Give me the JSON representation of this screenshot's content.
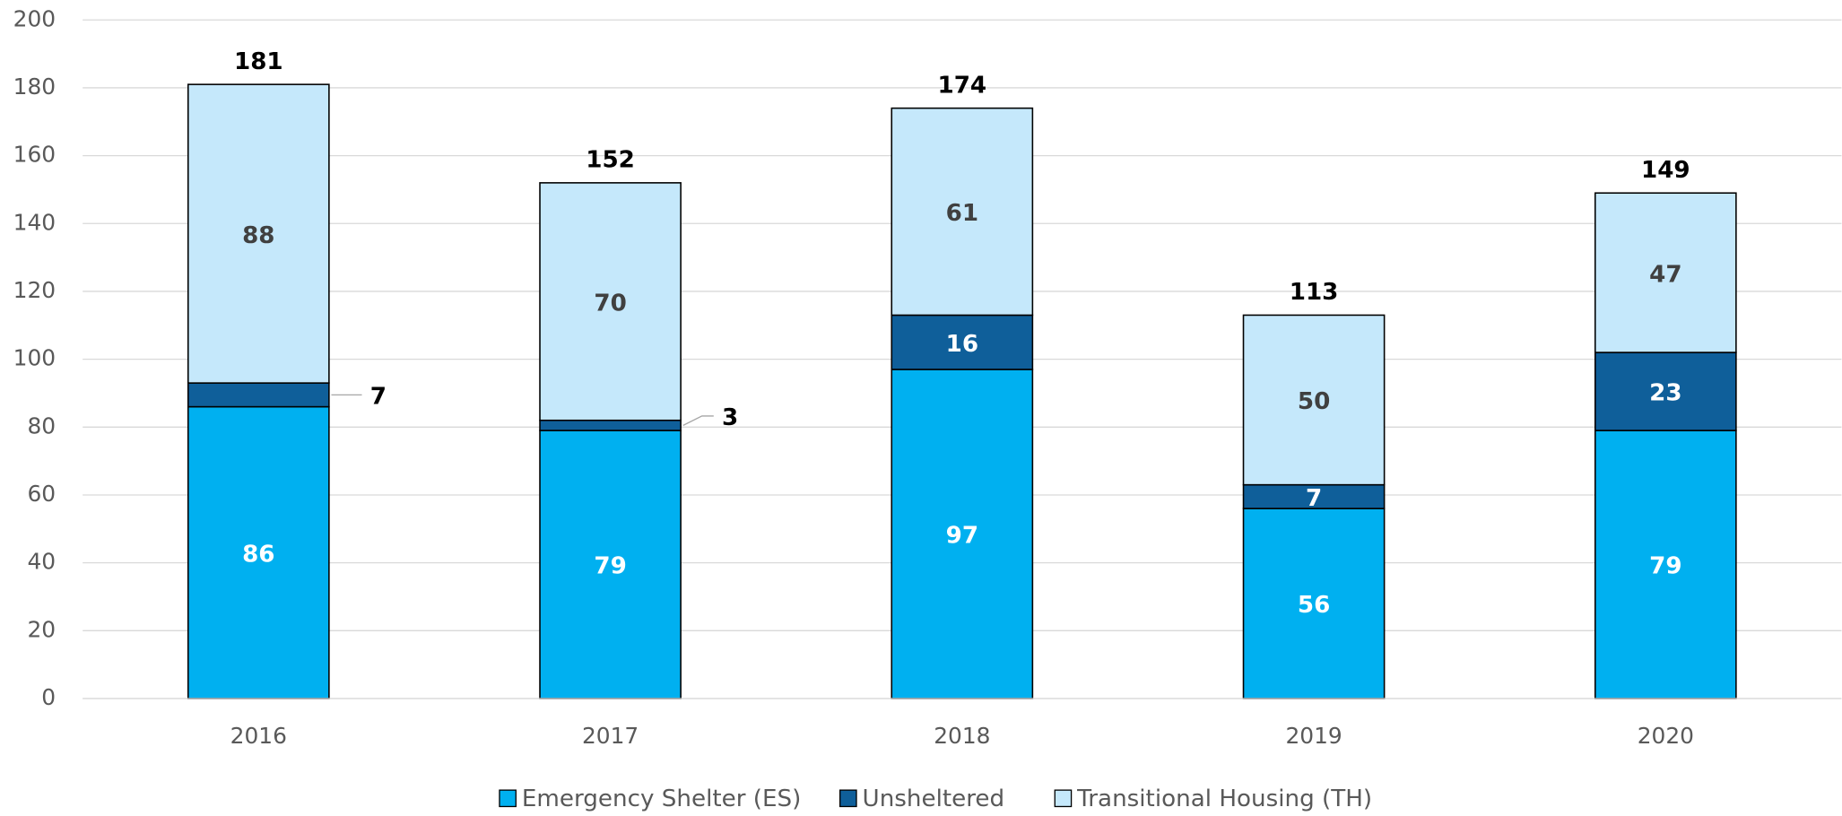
{
  "chart_data": {
    "type": "stacked_bar",
    "categories": [
      "2016",
      "2017",
      "2018",
      "2019",
      "2020"
    ],
    "series": [
      {
        "name": "Emergency Shelter (ES)",
        "color": "#00b0f0",
        "values": [
          86,
          79,
          97,
          56,
          79
        ]
      },
      {
        "name": "Unsheltered",
        "color": "#0f5f9a",
        "values": [
          7,
          3,
          16,
          7,
          23
        ]
      },
      {
        "name": "Transitional Housing (TH)",
        "color": "#c5e8fb",
        "values": [
          88,
          70,
          61,
          50,
          47
        ]
      }
    ],
    "totals": [
      181,
      152,
      174,
      113,
      149
    ],
    "ylim": [
      0,
      200
    ],
    "yticks": [
      0,
      20,
      40,
      60,
      80,
      100,
      120,
      140,
      160,
      180,
      200
    ],
    "grid": true,
    "legend": "bottom"
  }
}
